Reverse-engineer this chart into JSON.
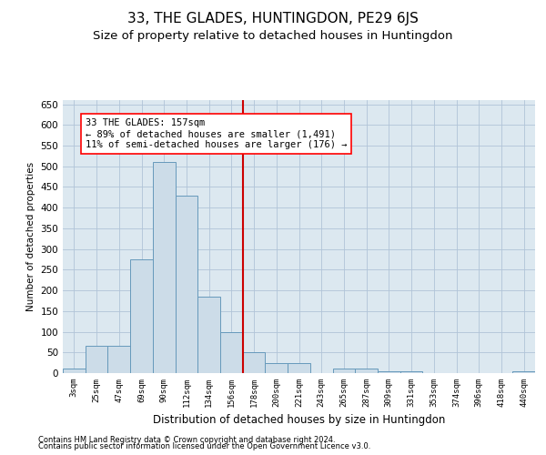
{
  "title": "33, THE GLADES, HUNTINGDON, PE29 6JS",
  "subtitle": "Size of property relative to detached houses in Huntingdon",
  "xlabel": "Distribution of detached houses by size in Huntingdon",
  "ylabel": "Number of detached properties",
  "footer1": "Contains HM Land Registry data © Crown copyright and database right 2024.",
  "footer2": "Contains public sector information licensed under the Open Government Licence v3.0.",
  "annotation_line1": "33 THE GLADES: 157sqm",
  "annotation_line2": "← 89% of detached houses are smaller (1,491)",
  "annotation_line3": "11% of semi-detached houses are larger (176) →",
  "bar_color": "#ccdce8",
  "bar_edge_color": "#6699bb",
  "vline_color": "#cc0000",
  "categories": [
    "3sqm",
    "25sqm",
    "47sqm",
    "69sqm",
    "90sqm",
    "112sqm",
    "134sqm",
    "156sqm",
    "178sqm",
    "200sqm",
    "221sqm",
    "243sqm",
    "265sqm",
    "287sqm",
    "309sqm",
    "331sqm",
    "353sqm",
    "374sqm",
    "396sqm",
    "418sqm",
    "440sqm"
  ],
  "values": [
    10,
    65,
    65,
    275,
    510,
    430,
    185,
    100,
    50,
    25,
    25,
    0,
    10,
    10,
    5,
    5,
    0,
    0,
    0,
    0,
    5
  ],
  "ylim": [
    0,
    660
  ],
  "yticks": [
    0,
    50,
    100,
    150,
    200,
    250,
    300,
    350,
    400,
    450,
    500,
    550,
    600,
    650
  ],
  "grid_color": "#b0c4d8",
  "bg_color": "#dce8f0",
  "title_fontsize": 11,
  "subtitle_fontsize": 9.5
}
